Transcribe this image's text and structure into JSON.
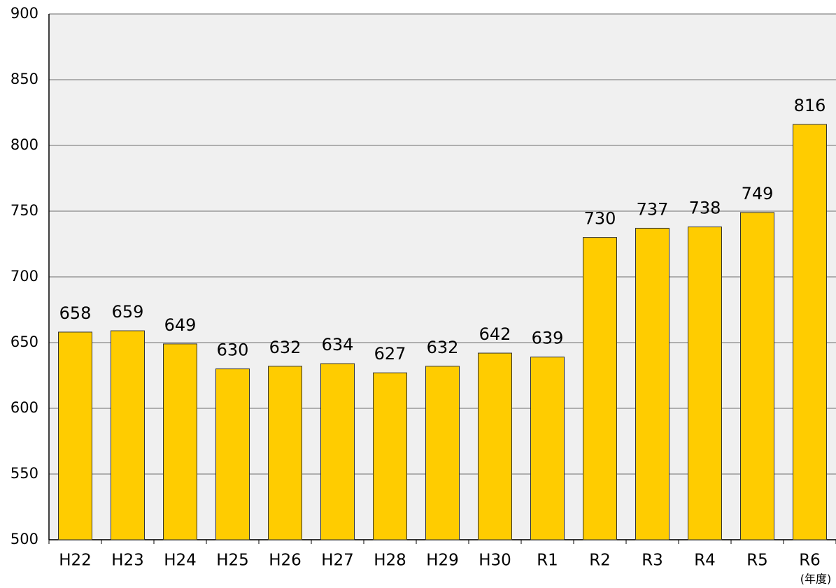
{
  "chart_data": {
    "type": "bar",
    "categories": [
      "H22",
      "H23",
      "H24",
      "H25",
      "H26",
      "H27",
      "H28",
      "H29",
      "H30",
      "R1",
      "R2",
      "R3",
      "R4",
      "R5",
      "R6"
    ],
    "values": [
      658,
      659,
      649,
      630,
      632,
      634,
      627,
      632,
      642,
      639,
      730,
      737,
      738,
      749,
      816
    ],
    "color": "#ffcc00",
    "ylim": [
      500,
      900
    ],
    "yticks": [
      500,
      550,
      600,
      650,
      700,
      750,
      800,
      850,
      900
    ],
    "grid": true,
    "annotation": "(年度)"
  }
}
